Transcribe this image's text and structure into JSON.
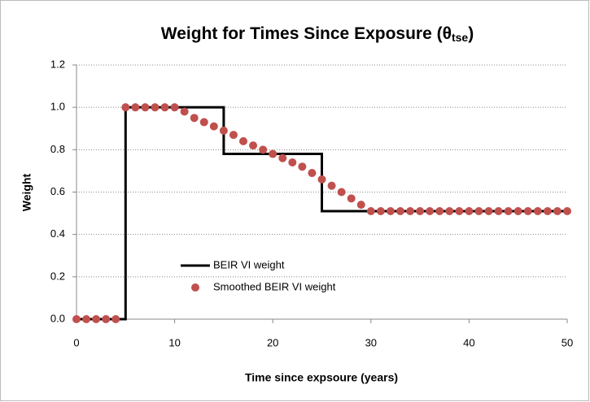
{
  "chart_data": {
    "type": "line",
    "title": {
      "main": "Weight for Times Since Exposure (θ",
      "sub": "tse",
      "end": ")"
    },
    "x_label": "Time since expsoure  (years)",
    "y_label": "Weight",
    "xlim": [
      0,
      50
    ],
    "xticks": [
      0,
      10,
      20,
      30,
      40,
      50
    ],
    "ylim": [
      0,
      1.2
    ],
    "yticks": [
      {
        "value": 0,
        "label": "0.0"
      },
      {
        "value": 0.2,
        "label": "0.2"
      },
      {
        "value": 0.4,
        "label": "0.4"
      },
      {
        "value": 0.6,
        "label": "0.6"
      },
      {
        "value": 0.8,
        "label": "0.8"
      },
      {
        "value": 1.0,
        "label": "1.0"
      },
      {
        "value": 1.2,
        "label": "1.2"
      }
    ],
    "grid": true,
    "series": [
      {
        "name": "BEIR VI weight",
        "color": "#000000",
        "style": "line",
        "x": [
          0,
          5,
          5,
          15,
          15,
          25,
          25,
          50
        ],
        "values": [
          0,
          0,
          1,
          1,
          0.78,
          0.78,
          0.51,
          0.51
        ]
      },
      {
        "name": "Smoothed BEIR VI weight",
        "color": "#c0504d",
        "style": "markers",
        "x": [
          0,
          1,
          2,
          3,
          4,
          5,
          6,
          7,
          8,
          9,
          10,
          11,
          12,
          13,
          14,
          15,
          16,
          17,
          18,
          19,
          20,
          21,
          22,
          23,
          24,
          25,
          26,
          27,
          28,
          29,
          30,
          31,
          32,
          33,
          34,
          35,
          36,
          37,
          38,
          39,
          40,
          41,
          42,
          43,
          44,
          45,
          46,
          47,
          48,
          49,
          50
        ],
        "values": [
          0,
          0,
          0,
          0,
          0,
          1,
          1,
          1,
          1,
          1,
          1,
          0.98,
          0.95,
          0.93,
          0.91,
          0.89,
          0.87,
          0.84,
          0.82,
          0.8,
          0.78,
          0.76,
          0.74,
          0.72,
          0.69,
          0.66,
          0.63,
          0.6,
          0.57,
          0.54,
          0.51,
          0.51,
          0.51,
          0.51,
          0.51,
          0.51,
          0.51,
          0.51,
          0.51,
          0.51,
          0.51,
          0.51,
          0.51,
          0.51,
          0.51,
          0.51,
          0.51,
          0.51,
          0.51,
          0.51,
          0.51
        ]
      }
    ]
  }
}
